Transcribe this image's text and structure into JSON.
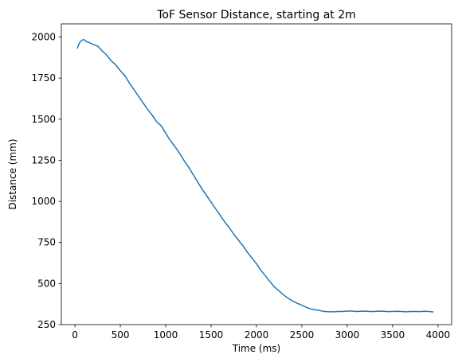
{
  "chart_data": {
    "type": "line",
    "title": "ToF Sensor Distance, starting at 2m",
    "xlabel": "Time (ms)",
    "ylabel": "Distance (mm)",
    "xlim": [
      -150,
      4150
    ],
    "ylim": [
      250,
      2080
    ],
    "xticks": [
      0,
      500,
      1000,
      1500,
      2000,
      2500,
      3000,
      3500,
      4000
    ],
    "yticks": [
      250,
      500,
      750,
      1000,
      1250,
      1500,
      1750,
      2000
    ],
    "grid": false,
    "line_color": "#1f77b4",
    "series": [
      {
        "x": [
          25,
          50,
          75,
          100,
          125,
          150,
          200,
          250,
          300,
          350,
          400,
          450,
          500,
          550,
          600,
          650,
          700,
          750,
          800,
          850,
          900,
          950,
          1000,
          1050,
          1100,
          1150,
          1200,
          1250,
          1300,
          1350,
          1400,
          1450,
          1500,
          1550,
          1600,
          1650,
          1700,
          1750,
          1800,
          1850,
          1900,
          1950,
          2000,
          2050,
          2100,
          2150,
          2200,
          2250,
          2300,
          2350,
          2400,
          2450,
          2500,
          2550,
          2600,
          2650,
          2700,
          2750,
          2800,
          2850,
          2900,
          2950,
          3000,
          3050,
          3100,
          3150,
          3200,
          3250,
          3300,
          3350,
          3400,
          3450,
          3500,
          3550,
          3600,
          3650,
          3700,
          3750,
          3800,
          3850,
          3900,
          3950
        ],
        "y": [
          1930,
          1965,
          1980,
          1985,
          1972,
          1968,
          1955,
          1945,
          1915,
          1890,
          1855,
          1830,
          1795,
          1765,
          1720,
          1680,
          1640,
          1600,
          1560,
          1525,
          1485,
          1460,
          1415,
          1370,
          1335,
          1295,
          1250,
          1210,
          1165,
          1120,
          1075,
          1035,
          995,
          955,
          915,
          875,
          840,
          800,
          765,
          730,
          690,
          655,
          620,
          580,
          545,
          510,
          478,
          455,
          430,
          410,
          393,
          380,
          368,
          355,
          345,
          340,
          335,
          330,
          328,
          328,
          330,
          330,
          332,
          332,
          330,
          331,
          332,
          330,
          330,
          332,
          331,
          329,
          330,
          331,
          330,
          328,
          330,
          330,
          329,
          331,
          330,
          327
        ]
      }
    ]
  }
}
